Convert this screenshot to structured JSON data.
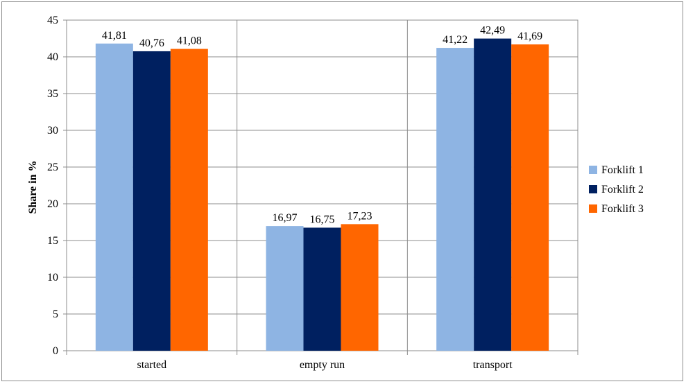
{
  "chart_data": {
    "type": "bar",
    "title": "",
    "xlabel": "",
    "ylabel": "Share in %",
    "ylim": [
      0,
      45
    ],
    "yticks": [
      0,
      5,
      10,
      15,
      20,
      25,
      30,
      35,
      40,
      45
    ],
    "categories": [
      "started",
      "empty run",
      "transport"
    ],
    "series": [
      {
        "name": "Forklift 1",
        "color": "#8EB4E3",
        "values": [
          41.81,
          16.97,
          41.22
        ],
        "labels": [
          "41,81",
          "16,97",
          "41,22"
        ]
      },
      {
        "name": "Forklift 2",
        "color": "#002060",
        "values": [
          40.76,
          16.75,
          42.49
        ],
        "labels": [
          "40,76",
          "16,75",
          "42,49"
        ]
      },
      {
        "name": "Forklift 3",
        "color": "#FF6600",
        "values": [
          41.08,
          17.23,
          41.69
        ],
        "labels": [
          "41,08",
          "17,23",
          "41,69"
        ]
      }
    ],
    "grid": true,
    "legend_position": "right"
  }
}
